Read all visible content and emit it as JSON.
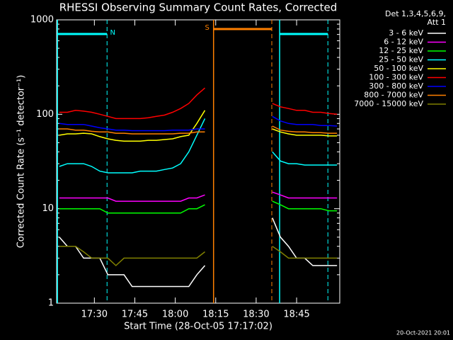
{
  "chart_data": {
    "type": "line",
    "title": "RHESSI Observing Summary Count Rates, Corrected",
    "x_label": "Start Time (28-Oct-05 17:17:02)",
    "y_label": "Corrected Count Rate (s⁻¹ detector⁻¹)",
    "legend_header": [
      "Det 1,3,4,5,6,9,",
      "Att 1"
    ],
    "footer": "20-Oct-2021 20:01",
    "log_y": true,
    "xlim": [
      16,
      121
    ],
    "ylim": [
      1,
      1000
    ],
    "yticks": [
      1,
      10,
      100,
      1000
    ],
    "xticks": [
      {
        "value": 30,
        "label": "17:30"
      },
      {
        "value": 45,
        "label": "17:45"
      },
      {
        "value": 60,
        "label": "18:00"
      },
      {
        "value": 75,
        "label": "18:15"
      },
      {
        "value": 90,
        "label": "18:30"
      },
      {
        "value": 105,
        "label": "18:45"
      }
    ],
    "intervals": [
      {
        "label": "N",
        "color": "#00ffff",
        "ranges": [
          [
            16.3,
            34.7
          ],
          [
            98.7,
            116.6
          ]
        ]
      },
      {
        "label": "S",
        "color": "#ff8000",
        "ranges": [
          [
            74.2,
            95.8
          ]
        ]
      }
    ],
    "x": [
      17,
      20,
      23,
      26,
      29,
      32,
      35,
      38,
      41,
      44,
      47,
      50,
      53,
      56,
      59,
      62,
      65,
      68,
      71,
      84,
      96,
      99,
      102,
      105,
      108,
      111,
      114,
      117,
      120
    ],
    "series": [
      {
        "name": "3 - 6 keV",
        "color": "#ffffff",
        "values": [
          5,
          4,
          4,
          3,
          3,
          3,
          2,
          2,
          2,
          1.5,
          1.5,
          1.5,
          1.5,
          1.5,
          1.5,
          1.5,
          1.5,
          2,
          2.5,
          null,
          8,
          5,
          4,
          3,
          3,
          2.5,
          2.5,
          2.5,
          2.5
        ]
      },
      {
        "name": "6 - 12 keV",
        "color": "#ff00ff",
        "values": [
          13,
          13,
          13,
          13,
          13,
          13,
          13,
          12,
          12,
          12,
          12,
          12,
          12,
          12,
          12,
          12,
          13,
          13,
          14,
          null,
          15,
          14,
          13,
          13,
          13,
          13,
          13,
          13,
          13
        ]
      },
      {
        "name": "12 - 25 keV",
        "color": "#00ff00",
        "values": [
          10,
          10,
          10,
          10,
          10,
          10,
          9,
          9,
          9,
          9,
          9,
          9,
          9,
          9,
          9,
          9,
          10,
          10,
          11,
          null,
          12,
          11,
          10,
          10,
          10,
          10,
          10,
          9.5,
          9.5
        ]
      },
      {
        "name": "25 - 50 keV",
        "color": "#00ffff",
        "values": [
          28,
          30,
          30,
          30,
          28,
          25,
          24,
          24,
          24,
          24,
          25,
          25,
          25,
          26,
          27,
          30,
          40,
          60,
          90,
          null,
          40,
          32,
          30,
          30,
          29,
          29,
          29,
          29,
          29
        ]
      },
      {
        "name": "50 - 100 keV",
        "color": "#ffff00",
        "values": [
          60,
          62,
          62,
          63,
          62,
          58,
          55,
          53,
          52,
          52,
          52,
          53,
          53,
          54,
          55,
          58,
          60,
          80,
          110,
          null,
          70,
          65,
          62,
          60,
          60,
          60,
          60,
          59,
          59
        ]
      },
      {
        "name": "100 - 300 keV",
        "color": "#ff0000",
        "values": [
          105,
          105,
          110,
          108,
          105,
          100,
          95,
          90,
          90,
          90,
          90,
          92,
          95,
          98,
          105,
          115,
          130,
          160,
          190,
          null,
          130,
          120,
          115,
          110,
          110,
          105,
          105,
          102,
          100
        ]
      },
      {
        "name": "300 - 800 keV",
        "color": "#0000ff",
        "values": [
          80,
          78,
          78,
          78,
          75,
          72,
          70,
          68,
          68,
          67,
          67,
          67,
          67,
          67,
          68,
          68,
          68,
          70,
          70,
          null,
          95,
          85,
          80,
          78,
          78,
          78,
          76,
          76,
          75
        ]
      },
      {
        "name": "800 - 7000 keV",
        "color": "#ff8000",
        "values": [
          70,
          70,
          68,
          68,
          66,
          65,
          65,
          63,
          63,
          62,
          62,
          62,
          62,
          62,
          62,
          63,
          63,
          65,
          65,
          null,
          75,
          68,
          66,
          65,
          65,
          64,
          64,
          63,
          63
        ]
      },
      {
        "name": "7000 - 15000 keV",
        "color": "#808000",
        "values": [
          4,
          4,
          4,
          3.5,
          3,
          3,
          3,
          2.5,
          3,
          3,
          3,
          3,
          3,
          3,
          3,
          3,
          3,
          3,
          3.5,
          null,
          4,
          3.5,
          3,
          3,
          3,
          3,
          3,
          3,
          3
        ]
      }
    ]
  }
}
